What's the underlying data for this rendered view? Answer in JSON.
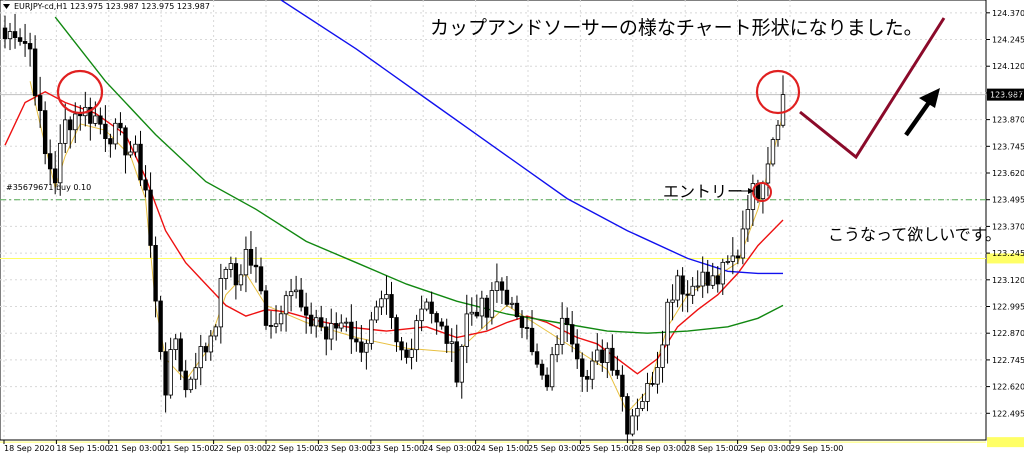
{
  "window": {
    "header_text": "EURJPY-cd,H1  123.975 123.987 123.975 123.987",
    "order_label": "#35679671 buy 0.10"
  },
  "annotations": {
    "title": "カップアンドソーサーの様なチャート形状になりました。",
    "entry": "エントリー",
    "wish": "こうなって欲しいです。"
  },
  "colors": {
    "sma_short": "#ee1111",
    "sma_mid": "#118811",
    "sma_long": "#1111ee",
    "sma_fast": "#e8c040",
    "circles": "#e02020",
    "projection": "#8b0a2a",
    "arrow": "#000000",
    "support_line": "#ffff66",
    "order_line": "#55aa55"
  },
  "chart_data": {
    "type": "candlestick",
    "symbol": "EURJPY-cd",
    "timeframe": "H1",
    "ylim": [
      122.37,
      124.43
    ],
    "current_price": 123.987,
    "current_price_label": "123.987",
    "order_price": 123.495,
    "support_levels": [
      123.22,
      122.36
    ],
    "y_ticks": [
      "124.370",
      "124.245",
      "124.120",
      "123.995",
      "123.870",
      "123.745",
      "123.620",
      "123.495",
      "123.370",
      "123.245",
      "123.120",
      "122.995",
      "122.870",
      "122.745",
      "122.620",
      "122.495"
    ],
    "x_ticks": [
      "18 Sep 2020",
      "18 Sep 15:00",
      "21 Sep 03:00",
      "21 Sep 15:00",
      "22 Sep 03:00",
      "22 Sep 15:00",
      "23 Sep 03:00",
      "23 Sep 15:00",
      "24 Sep 03:00",
      "24 Sep 15:00",
      "25 Sep 03:00",
      "25 Sep 15:00",
      "28 Sep 03:00",
      "28 Sep 15:00",
      "29 Sep 03:00",
      "29 Sep 15:00"
    ],
    "anchors": [
      [
        0,
        124.25
      ],
      [
        2,
        124.3
      ],
      [
        5,
        124.2
      ],
      [
        8,
        123.7
      ],
      [
        10,
        123.6
      ],
      [
        12,
        123.85
      ],
      [
        15,
        123.92
      ],
      [
        18,
        123.88
      ],
      [
        20,
        123.82
      ],
      [
        22,
        123.8
      ],
      [
        24,
        123.75
      ],
      [
        26,
        123.7
      ],
      [
        28,
        123.55
      ],
      [
        30,
        123.0
      ],
      [
        32,
        122.62
      ],
      [
        34,
        122.85
      ],
      [
        36,
        122.6
      ],
      [
        38,
        122.75
      ],
      [
        40,
        122.8
      ],
      [
        42,
        122.95
      ],
      [
        44,
        123.2
      ],
      [
        46,
        123.1
      ],
      [
        48,
        123.25
      ],
      [
        50,
        123.15
      ],
      [
        52,
        122.95
      ],
      [
        54,
        122.92
      ],
      [
        56,
        123.1
      ],
      [
        58,
        123.05
      ],
      [
        60,
        122.9
      ],
      [
        62,
        122.95
      ],
      [
        64,
        122.85
      ],
      [
        66,
        122.9
      ],
      [
        68,
        122.95
      ],
      [
        70,
        122.8
      ],
      [
        72,
        122.85
      ],
      [
        74,
        122.95
      ],
      [
        76,
        123.0
      ],
      [
        78,
        122.8
      ],
      [
        80,
        122.75
      ],
      [
        82,
        122.95
      ],
      [
        84,
        123.05
      ],
      [
        86,
        122.9
      ],
      [
        88,
        122.85
      ],
      [
        90,
        122.7
      ],
      [
        92,
        122.95
      ],
      [
        94,
        123.0
      ],
      [
        96,
        122.95
      ],
      [
        98,
        123.1
      ],
      [
        100,
        123.05
      ],
      [
        102,
        122.9
      ],
      [
        104,
        122.95
      ],
      [
        106,
        122.7
      ],
      [
        108,
        122.6
      ],
      [
        110,
        122.85
      ],
      [
        112,
        122.95
      ],
      [
        114,
        122.8
      ],
      [
        116,
        122.65
      ],
      [
        118,
        122.75
      ],
      [
        120,
        122.8
      ],
      [
        122,
        122.7
      ],
      [
        124,
        122.45
      ],
      [
        126,
        122.55
      ],
      [
        128,
        122.6
      ],
      [
        130,
        122.75
      ],
      [
        132,
        123.0
      ],
      [
        134,
        123.15
      ],
      [
        136,
        123.05
      ],
      [
        138,
        123.15
      ],
      [
        140,
        123.1
      ],
      [
        142,
        123.12
      ],
      [
        144,
        123.18
      ],
      [
        146,
        123.25
      ],
      [
        148,
        123.5
      ],
      [
        150,
        123.55
      ],
      [
        152,
        123.7
      ],
      [
        154,
        123.9
      ],
      [
        155,
        123.987
      ]
    ],
    "series": [
      {
        "name": "",
        "type": "sma",
        "role": "fast",
        "points": [
          [
            5,
            124.05
          ],
          [
            7,
            123.85
          ],
          [
            10,
            123.55
          ],
          [
            12,
            123.7
          ],
          [
            15,
            123.85
          ],
          [
            20,
            123.82
          ],
          [
            25,
            123.7
          ],
          [
            28,
            123.5
          ],
          [
            30,
            123.0
          ],
          [
            32,
            122.75
          ],
          [
            36,
            122.65
          ],
          [
            40,
            122.78
          ],
          [
            44,
            123.05
          ],
          [
            48,
            123.15
          ],
          [
            52,
            123.0
          ],
          [
            60,
            122.92
          ],
          [
            70,
            122.85
          ],
          [
            80,
            122.8
          ],
          [
            90,
            122.78
          ],
          [
            100,
            123.0
          ],
          [
            110,
            122.85
          ],
          [
            120,
            122.7
          ],
          [
            124,
            122.5
          ],
          [
            128,
            122.6
          ],
          [
            132,
            122.9
          ],
          [
            136,
            123.05
          ],
          [
            146,
            123.2
          ],
          [
            150,
            123.45
          ],
          [
            154,
            123.8
          ],
          [
            155,
            123.9
          ]
        ]
      },
      {
        "name": "",
        "type": "sma",
        "role": "short",
        "points": [
          [
            0,
            123.75
          ],
          [
            4,
            123.95
          ],
          [
            8,
            124.0
          ],
          [
            12,
            123.95
          ],
          [
            18,
            123.9
          ],
          [
            24,
            123.8
          ],
          [
            28,
            123.6
          ],
          [
            32,
            123.35
          ],
          [
            36,
            123.2
          ],
          [
            40,
            123.1
          ],
          [
            44,
            123.0
          ],
          [
            48,
            122.95
          ],
          [
            52,
            122.98
          ],
          [
            56,
            122.97
          ],
          [
            62,
            122.93
          ],
          [
            68,
            122.9
          ],
          [
            76,
            122.88
          ],
          [
            84,
            122.9
          ],
          [
            90,
            122.85
          ],
          [
            96,
            122.88
          ],
          [
            100,
            122.92
          ],
          [
            104,
            122.95
          ],
          [
            108,
            122.92
          ],
          [
            114,
            122.85
          ],
          [
            118,
            122.82
          ],
          [
            122,
            122.75
          ],
          [
            126,
            122.68
          ],
          [
            130,
            122.75
          ],
          [
            134,
            122.9
          ],
          [
            138,
            122.98
          ],
          [
            142,
            123.05
          ],
          [
            146,
            123.15
          ],
          [
            150,
            123.28
          ],
          [
            155,
            123.4
          ]
        ]
      },
      {
        "name": "",
        "type": "sma",
        "role": "mid",
        "points": [
          [
            10,
            124.35
          ],
          [
            20,
            124.05
          ],
          [
            30,
            123.8
          ],
          [
            40,
            123.58
          ],
          [
            50,
            123.45
          ],
          [
            60,
            123.3
          ],
          [
            70,
            123.2
          ],
          [
            80,
            123.1
          ],
          [
            90,
            123.02
          ],
          [
            100,
            122.96
          ],
          [
            110,
            122.92
          ],
          [
            120,
            122.88
          ],
          [
            128,
            122.87
          ],
          [
            136,
            122.88
          ],
          [
            144,
            122.9
          ],
          [
            150,
            122.94
          ],
          [
            155,
            123.0
          ]
        ]
      },
      {
        "name": "",
        "type": "sma",
        "role": "long",
        "points": [
          [
            55,
            124.43
          ],
          [
            70,
            124.2
          ],
          [
            85,
            123.95
          ],
          [
            100,
            123.7
          ],
          [
            112,
            123.5
          ],
          [
            124,
            123.35
          ],
          [
            136,
            123.22
          ],
          [
            144,
            123.16
          ],
          [
            150,
            123.15
          ],
          [
            155,
            123.15
          ]
        ]
      }
    ]
  }
}
